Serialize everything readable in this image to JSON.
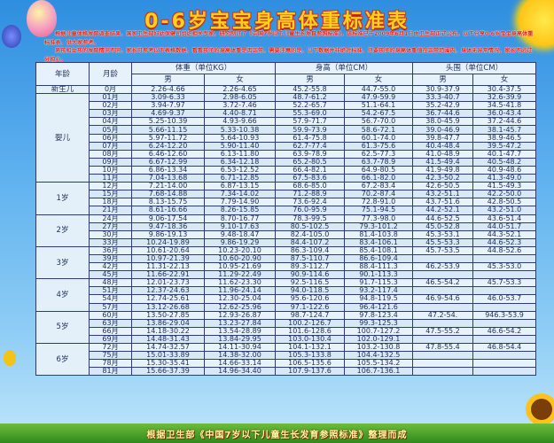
{
  "title": "0-6岁宝宝身高体重标准表",
  "intro": [
    "根据儿童体格发育调查结果，国家卫生部妇幼保健司组织相关专家，研究制订了《中国7岁以下儿童生长发育参照标准》，该标准已于2009年6月1日由卫生部正式公布。以下分享0-6岁宝宝身高体重标准表，供大家参考。",
    "男孩和女孩的发育情况不同，家长可参考以下表格数据，看看孩子的身高体重是否正常。需要注意的是，以下数据并非绝对标准，只要孩子的身高体重值在正常范围内，身体无异常情况，家长不必过分担心。"
  ],
  "table": {
    "headers": {
      "age": "年龄",
      "month": "月龄",
      "weight": "体重（单位KG）",
      "height": "身高（单位CM）",
      "head": "头围（单位CM）",
      "male": "男",
      "female": "女"
    },
    "groups": [
      {
        "age": "新生儿",
        "rows": [
          [
            "0月",
            "2.26-4.66",
            "2.26-4.65",
            "45.2-55.8",
            "44.7-55.0",
            "30.9-37.9",
            "30.4-37.5"
          ]
        ]
      },
      {
        "age": "婴儿",
        "rows": [
          [
            "01月",
            "3.09-6.33",
            "2.98-6.05",
            "48.7-61.2",
            "47.9-59.9",
            "33.3-40.7",
            "32.6-39.9"
          ],
          [
            "02月",
            "3.94-7.97",
            "3.72-7.46",
            "52.2-65.7",
            "51.1-64.1",
            "35.2-42.9",
            "34.5-41.8"
          ],
          [
            "03月",
            "4.69-9.37",
            "4.40-8.71",
            "55.3-69.0",
            "54.2-67.5",
            "36.7-44.6",
            "36.0-43.4"
          ],
          [
            "04月",
            "5.25-10.39",
            "4.93-9.66",
            "57.9-71.7",
            "56.7-70.0",
            "38.0-45.9",
            "37.2-44.6"
          ],
          [
            "05月",
            "5.66-11.15",
            "5.33-10.38",
            "59.9-73.9",
            "58.6-72.1",
            "39.0-46.9",
            "38.1-45.7"
          ],
          [
            "06月",
            "5.97-11.72",
            "5.64-10.93",
            "61.4-75.8",
            "60.1-74.0",
            "39.8-47.7",
            "38.9-46.5"
          ],
          [
            "07月",
            "6.24-12.20",
            "5.90-11.40",
            "62.7-77.4",
            "61.3-75.6",
            "40.4-48.4",
            "39.5-47.2"
          ],
          [
            "08月",
            "6.46-12.60",
            "6.13-11.80",
            "63.9-78.9",
            "62.5-77.3",
            "41.0-48.9",
            "40.1-47.7"
          ],
          [
            "09月",
            "6.67-12.99",
            "6.34-12.18",
            "65.2-80.5",
            "63.7-78.9",
            "41.5-49.4",
            "40.5-48.2"
          ],
          [
            "10月",
            "6.86-13.34",
            "6.53-12.52",
            "66.4-82.1",
            "64.9-80.5",
            "41.9-49.8",
            "40.9-48.6"
          ],
          [
            "11月",
            "7.04-13.68",
            "6.71-12.85",
            "67.5-83.6",
            "66.1-82.0",
            "42.3-50.2",
            "41.3-49.0"
          ]
        ]
      },
      {
        "age": "1岁",
        "rows": [
          [
            "12月",
            "7.21-14.00",
            "6.87-13.15",
            "68.6-85.0",
            "67.2-83.4",
            "42.6-50.5",
            "41.5-49.3"
          ],
          [
            "15月",
            "7.68-14.88",
            "7.34-14.02",
            "71.2-88.9",
            "70.2-87.4",
            "43.2-51.1",
            "42.2-50.0"
          ],
          [
            "18月",
            "8.13-15.75",
            "7.79-14.90",
            "73.6-92.4",
            "72.8-91.0",
            "43.7-51.6",
            "42.8-50.5"
          ],
          [
            "21月",
            "8.61-16.66",
            "8.26-15.85",
            "76.0-95.9",
            "75.1-94.5",
            "44.2-52.1",
            "43.2-51.0"
          ]
        ]
      },
      {
        "age": "2岁",
        "rows": [
          [
            "24月",
            "9.06-17.54",
            "8.70-16.77",
            "78.3-99.5",
            "77.3-98.0",
            "44.6-52.5",
            "43.6-51.4"
          ],
          [
            "27月",
            "9.47-18.36",
            "9.10-17.63",
            "80.5-102.5",
            "79.3-101.2",
            "45.0-52.8",
            "44.0-51.7"
          ],
          [
            "30月",
            "9.86-19.13",
            "9.48-18.47",
            "82.4-105.0",
            "81.4-103.8",
            "45.3-53.1",
            "44.3-52.1"
          ],
          [
            "33月",
            "10.24-19.89",
            "9.86-19.29",
            "84.4-107.2",
            "83.4-106.1",
            "45.5-53.3",
            "44.6-52.3"
          ]
        ]
      },
      {
        "age": "3岁",
        "rows": [
          [
            "36月",
            "10.61-20.64",
            "10.23-20.10",
            "86.3-109.4",
            "85.4-108.1",
            "45.7-53.5",
            "44.8-52.6"
          ],
          [
            "39月",
            "10.97-21.39",
            "10.60-20.90",
            "87.5-110.7",
            "86.6-109.4",
            "",
            ""
          ],
          [
            "42月",
            "11.31-22.13",
            "10.95-21.69",
            "89.3-112.7",
            "88.4-111.3",
            "46.2-53.9",
            "45.3-53.0"
          ],
          [
            "45月",
            "11.66-22.91",
            "11.29-22.49",
            "90.9-114.6",
            "90.1-113.3",
            "",
            ""
          ]
        ]
      },
      {
        "age": "4岁",
        "rows": [
          [
            "48月",
            "12.01-23.73",
            "11.62-23.30",
            "92.5-116.5",
            "91.7-115.3",
            "46.5-54.2",
            "45.7-53.3"
          ],
          [
            "51月",
            "12.37-24.63",
            "11.96-24.14",
            "94.0-118.5",
            "93.2-117.4",
            "",
            ""
          ],
          [
            "54月",
            "12.74-25.61",
            "12.30-25.04",
            "95.6-120.6",
            "94.8-119.5",
            "46.9-54.6",
            "46.0-53.7"
          ],
          [
            "57月",
            "13.12-26.68",
            "12.62-25.96",
            "97.1-122.6",
            "96.4-121.6",
            "",
            ""
          ]
        ]
      },
      {
        "age": "5岁",
        "rows": [
          [
            "60月",
            "13.50-27.85",
            "12.93-26.87",
            "98.7-124.7",
            "97.8-123.4",
            "47.2-54.",
            "946.3-53.9"
          ],
          [
            "63月",
            "13.86-29.04",
            "13.23-27.84",
            "100.2-126.7",
            "99.3-125.3",
            "",
            ""
          ],
          [
            "66月",
            "14.18-30.22",
            "13.54-28.89",
            "101.6-128.6",
            "100.7-127.2",
            "47.5-55.2",
            "46.6-54.2"
          ],
          [
            "69月",
            "14.48-31.43",
            "13.84-29.95",
            "103.0-130.4",
            "102.0-129.1",
            "",
            ""
          ]
        ]
      },
      {
        "age": "6岁",
        "rows": [
          [
            "72月",
            "14.74-32.57",
            "14.11-30.94",
            "104.1-132.1",
            "103.2-130.8",
            "47.8-55.4",
            "46.8-54.4"
          ],
          [
            "75月",
            "15.01-33.89",
            "14.38-32.00",
            "105.3-133.8",
            "104.4-132.5",
            "",
            ""
          ],
          [
            "78月",
            "15.30-35.41",
            "14.66-33.14",
            "106.5-135.6",
            "105.5-134.2",
            "",
            ""
          ],
          [
            "81月",
            "15.66-37.39",
            "14.96-34.40",
            "107.9-137.6",
            "106.7-136.1",
            "",
            ""
          ]
        ]
      }
    ]
  },
  "footer": "根据卫生部《中国7岁以下儿童生长发育参照标准》整理而成",
  "colors": {
    "title": "#ffd21a",
    "title_outline": "#d2321e",
    "intro": "#e2231a",
    "border": "#2a3f6f",
    "cell": "#e8f2fb"
  }
}
